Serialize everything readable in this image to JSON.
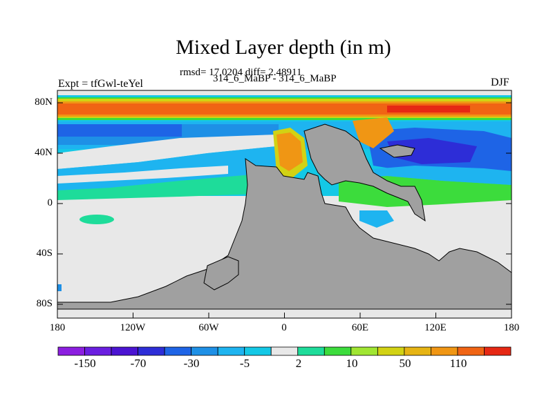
{
  "title": "Mixed Layer depth (in m)",
  "subtitle_stats": "rmsd= 17.0204 diff= 2.48911",
  "subtitle_runs": "314_6_MaBP - 314_6_MaBP",
  "left_label": "Expt = tfGwl-teYel",
  "right_label": "DJF",
  "map": {
    "lat_ticks": [
      "80N",
      "40N",
      "0",
      "40S",
      "80S"
    ],
    "lon_ticks": [
      "180",
      "120W",
      "60W",
      "0",
      "60E",
      "120E",
      "180"
    ],
    "land_color": "#a0a0a0",
    "near_zero_color": "#e8e8e8"
  },
  "colorbar": {
    "colors": [
      "#8c1ee0",
      "#6a1ee0",
      "#4b14d2",
      "#2d2dd7",
      "#1e64e6",
      "#1e90e6",
      "#1eb4f0",
      "#14c8e6",
      "#e8e8e8",
      "#1edc9a",
      "#3cdc3c",
      "#a0e632",
      "#d2d214",
      "#e6b414",
      "#f09614",
      "#f06414",
      "#e62814"
    ],
    "labels": [
      "-150",
      "-70",
      "-30",
      "-5",
      "2",
      "10",
      "50",
      "110"
    ]
  }
}
